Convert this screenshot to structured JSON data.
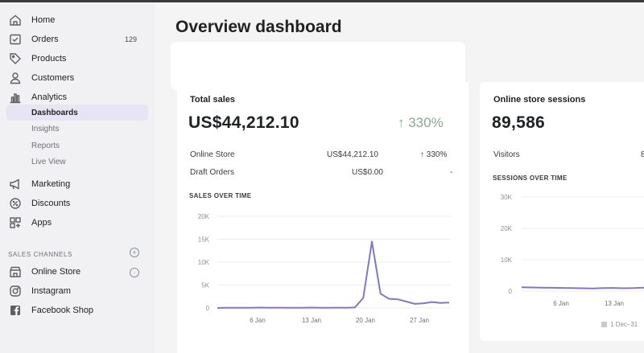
{
  "sidebar": {
    "items": [
      {
        "label": "Home",
        "icon": "home-icon"
      },
      {
        "label": "Orders",
        "icon": "orders-icon",
        "badge": "129"
      },
      {
        "label": "Products",
        "icon": "tag-icon"
      },
      {
        "label": "Customers",
        "icon": "person-icon"
      },
      {
        "label": "Analytics",
        "icon": "bar-chart-icon"
      }
    ],
    "analytics_sub": [
      {
        "label": "Dashboards",
        "active": true
      },
      {
        "label": "Insights"
      },
      {
        "label": "Reports"
      },
      {
        "label": "Live View"
      }
    ],
    "more_items": [
      {
        "label": "Marketing",
        "icon": "megaphone-icon"
      },
      {
        "label": "Discounts",
        "icon": "discount-icon"
      },
      {
        "label": "Apps",
        "icon": "apps-icon"
      }
    ],
    "sales_channels_label": "SALES CHANNELS",
    "channels": [
      {
        "label": "Online Store",
        "icon": "store-icon"
      },
      {
        "label": "Instagram",
        "icon": "instagram-icon"
      },
      {
        "label": "Facebook Shop",
        "icon": "facebook-icon"
      }
    ]
  },
  "page": {
    "title": "Overview dashboard"
  },
  "total_sales": {
    "title": "Total sales",
    "amount": "US$44,212.10",
    "change": "↑ 330%",
    "rows": [
      {
        "label": "Online Store",
        "value": "US$44,212.10",
        "change": "↑ 330%"
      },
      {
        "label": "Draft Orders",
        "value": "US$0.00",
        "change": "-"
      }
    ],
    "chart_title": "SALES OVER TIME"
  },
  "sessions": {
    "title": "Online store sessions",
    "count": "89,586",
    "visitors_label": "Visitors",
    "visitors_value": "8",
    "chart_title": "SESSIONS OVER TIME",
    "legend": "1 Dec–31"
  },
  "colors": {
    "accent": "#7f78c8",
    "positive": "#8aa893",
    "active_nav": "#e7e5f4"
  },
  "chart_data": [
    {
      "type": "line",
      "title": "SALES OVER TIME",
      "ylim": [
        0,
        20000
      ],
      "yticks": [
        "20K",
        "15K",
        "10K",
        "5K",
        "0"
      ],
      "xticks": [
        "6 Jan",
        "13 Jan",
        "20 Jan",
        "27 Jan"
      ],
      "series": [
        {
          "values": [
            0,
            60,
            50,
            40,
            60,
            80,
            50,
            70,
            60,
            50,
            60,
            80,
            40,
            60,
            70,
            60,
            100,
            2200,
            14500,
            3100,
            2000,
            1900,
            1400,
            900,
            1000,
            1300,
            1100,
            1200
          ]
        }
      ]
    },
    {
      "type": "line",
      "title": "SESSIONS OVER TIME",
      "ylim": [
        0,
        30000
      ],
      "yticks": [
        "30K",
        "20K",
        "10K",
        "0"
      ],
      "xticks": [
        "6 Jan",
        "13 Jan"
      ],
      "series": [
        {
          "values": [
            1200,
            1150,
            1100,
            1050,
            1000,
            950,
            900,
            850,
            950,
            1000,
            900,
            950,
            1100
          ]
        }
      ]
    }
  ]
}
